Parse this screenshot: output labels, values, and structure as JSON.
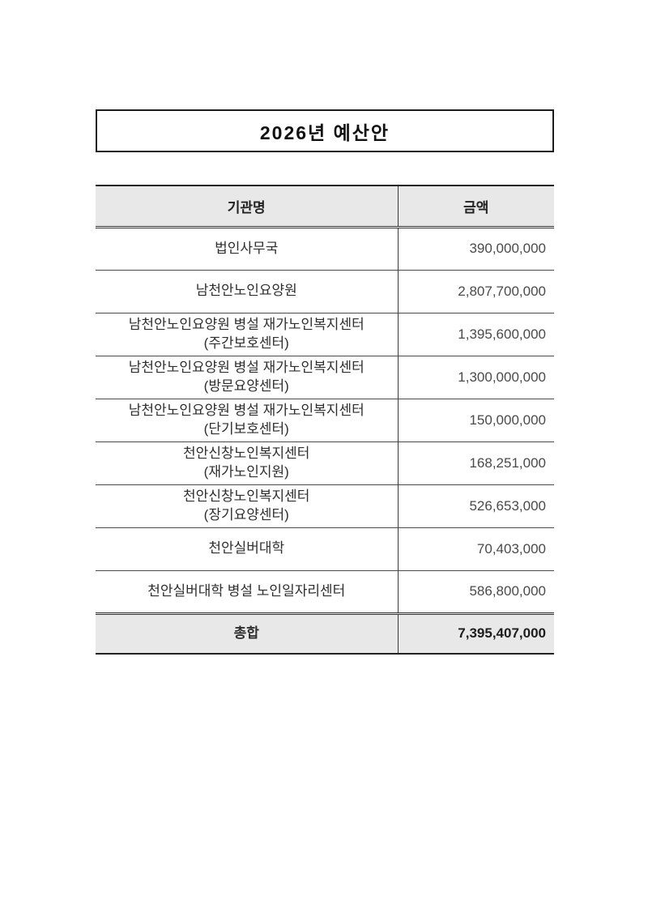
{
  "title": "2026년 예산안",
  "table": {
    "headers": [
      "기관명",
      "금액"
    ],
    "rows": [
      {
        "name": "법인사무국",
        "amount": "390,000,000"
      },
      {
        "name": "남천안노인요양원",
        "amount": "2,807,700,000"
      },
      {
        "name": "남천안노인요양원 병설 재가노인복지센터\n(주간보호센터)",
        "amount": "1,395,600,000"
      },
      {
        "name": "남천안노인요양원 병설 재가노인복지센터\n(방문요양센터)",
        "amount": "1,300,000,000"
      },
      {
        "name": "남천안노인요양원 병설 재가노인복지센터\n(단기보호센터)",
        "amount": "150,000,000"
      },
      {
        "name": "천안신창노인복지센터\n(재가노인지원)",
        "amount": "168,251,000"
      },
      {
        "name": "천안신창노인복지센터\n(장기요양센터)",
        "amount": "526,653,000"
      },
      {
        "name": "천안실버대학",
        "amount": "70,403,000"
      },
      {
        "name": "천안실버대학 병설  노인일자리센터",
        "amount": "586,800,000"
      }
    ],
    "total": {
      "name": "총합",
      "amount": "7,395,407,000"
    }
  },
  "colors": {
    "header_bg": "#e8e8e8",
    "total_bg": "#e8e8e8",
    "line_thin": "#4a4a4a",
    "line_thick": "#222222",
    "text_main": "#2e2e2e",
    "text_number": "#4a4a4a"
  }
}
